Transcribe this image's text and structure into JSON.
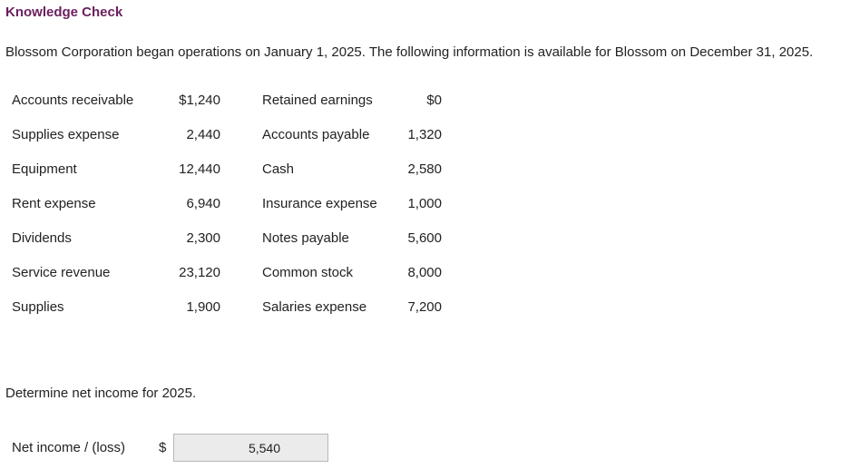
{
  "header": {
    "title": "Knowledge Check"
  },
  "intro": "Blossom Corporation began operations on January 1, 2025. The following information is available for Blossom on December 31, 2025.",
  "accounts": [
    {
      "left_label": "Accounts receivable",
      "left_value": "$1,240",
      "right_label": "Retained earnings",
      "right_value": "$0"
    },
    {
      "left_label": "Supplies expense",
      "left_value": "2,440",
      "right_label": "Accounts payable",
      "right_value": "1,320"
    },
    {
      "left_label": "Equipment",
      "left_value": "12,440",
      "right_label": "Cash",
      "right_value": "2,580"
    },
    {
      "left_label": "Rent expense",
      "left_value": "6,940",
      "right_label": "Insurance expense",
      "right_value": "1,000"
    },
    {
      "left_label": "Dividends",
      "left_value": "2,300",
      "right_label": "Notes payable",
      "right_value": "5,600"
    },
    {
      "left_label": "Service revenue",
      "left_value": "23,120",
      "right_label": "Common stock",
      "right_value": "8,000"
    },
    {
      "left_label": "Supplies",
      "left_value": "1,900",
      "right_label": "Salaries expense",
      "right_value": "7,200"
    }
  ],
  "question": "Determine net income for 2025.",
  "answer": {
    "label": "Net income / (loss)",
    "currency": "$",
    "value": "5,540"
  }
}
